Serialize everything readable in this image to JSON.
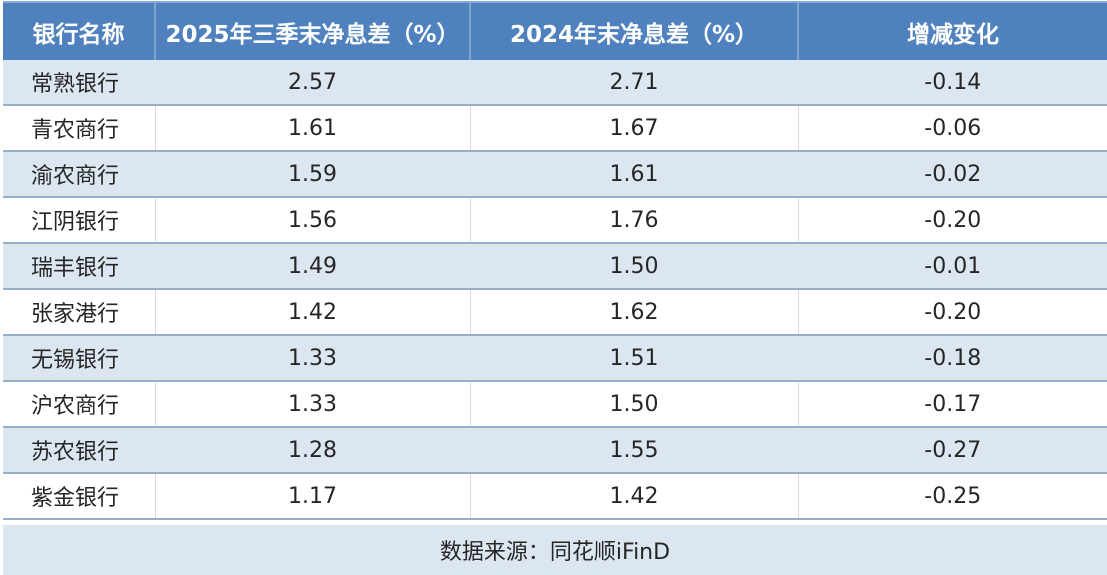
{
  "chart_data": {
    "type": "table",
    "columns": [
      "银行名称",
      "2025年三季末净息差（%）",
      "2024年末净息差（%）",
      "增减变化"
    ],
    "rows": [
      [
        "常熟银行",
        "2.57",
        "2.71",
        "-0.14"
      ],
      [
        "青农商行",
        "1.61",
        "1.67",
        "-0.06"
      ],
      [
        "渝农商行",
        "1.59",
        "1.61",
        "-0.02"
      ],
      [
        "江阴银行",
        "1.56",
        "1.76",
        "-0.20"
      ],
      [
        "瑞丰银行",
        "1.49",
        "1.50",
        "-0.01"
      ],
      [
        "张家港行",
        "1.42",
        "1.62",
        "-0.20"
      ],
      [
        "无锡银行",
        "1.33",
        "1.51",
        "-0.18"
      ],
      [
        "沪农商行",
        "1.33",
        "1.50",
        "-0.17"
      ],
      [
        "苏农银行",
        "1.28",
        "1.55",
        "-0.27"
      ],
      [
        "紫金银行",
        "1.17",
        "1.42",
        "-0.25"
      ]
    ],
    "source_note": "数据来源：同花顺iFinD",
    "layout": {
      "striped": true,
      "shaded_rows": "odd",
      "first_column_align": "left",
      "other_columns_align": "center"
    }
  },
  "colors": {
    "header_bg": "#4E81BD",
    "header_text": "#FFFFFF",
    "header_divider": "#7EA4D2",
    "header_top_edge": "#87AAD5",
    "row_shade": "#DCE6F1",
    "row_border": "#96ADCC",
    "cell_border": "#D9D9D9",
    "text": "#262626"
  }
}
